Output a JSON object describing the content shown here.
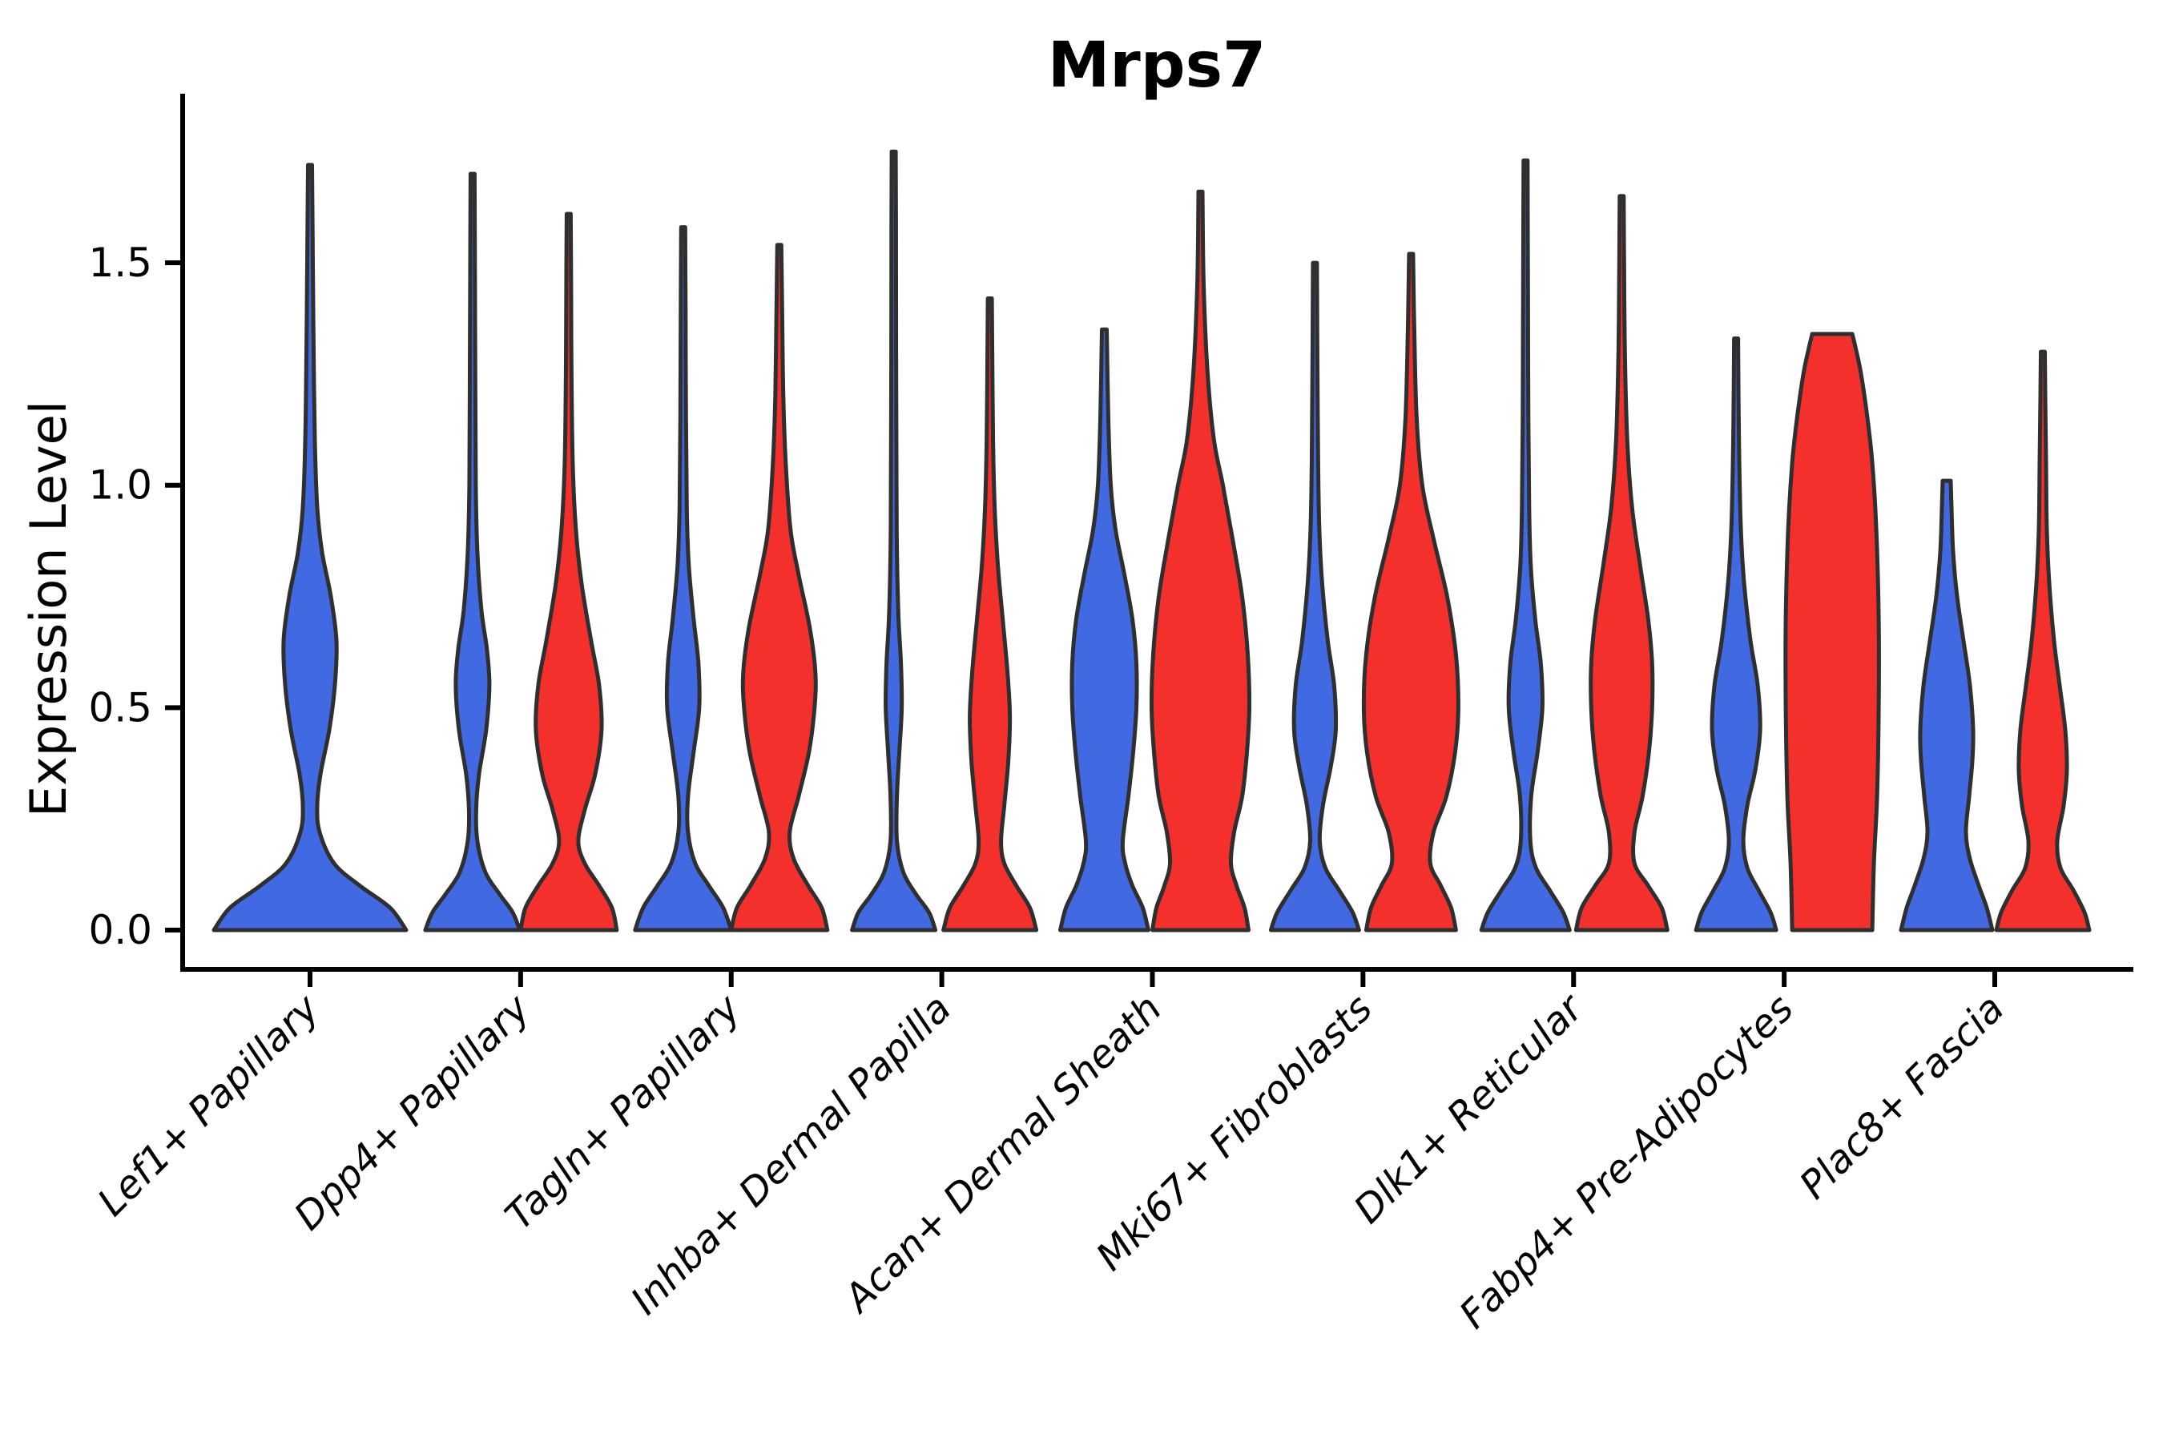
{
  "figure": {
    "title": "Mrps7",
    "ylabel": "Expression Level"
  },
  "chart_data": {
    "type": "violin",
    "subtype": "split-violin-pairs",
    "title": "Mrps7",
    "xlabel": "",
    "ylabel": "Expression Level",
    "ylim": [
      -0.09,
      1.88
    ],
    "yticks": [
      0.0,
      0.5,
      1.0,
      1.5
    ],
    "ytick_labels": [
      "0.0",
      "0.5",
      "1.0",
      "1.5"
    ],
    "grid": false,
    "legend": "none",
    "categories": [
      "Lef1+ Papillary",
      "Dpp4+ Papillary",
      "Tagln+ Papillary",
      "Inhba+ Dermal Papilla",
      "Acan+ Dermal Sheath",
      "Mki67+ Fibroblasts",
      "Dlk1+ Reticular",
      "Fabp4+ Pre-Adipocytes",
      "Plac8+ Fascia"
    ],
    "groups": [
      {
        "name": "blue",
        "color": "#4169E1",
        "side": -1
      },
      {
        "name": "red",
        "color": "#F4302C",
        "side": 1
      }
    ],
    "violins": [
      {
        "category": 0,
        "group": "blue",
        "side": 0,
        "max_expression": 1.72,
        "profile": [
          [
            0,
            120
          ],
          [
            0.05,
            100
          ],
          [
            0.1,
            62
          ],
          [
            0.15,
            30
          ],
          [
            0.22,
            12
          ],
          [
            0.28,
            9
          ],
          [
            0.35,
            13
          ],
          [
            0.45,
            24
          ],
          [
            0.55,
            31
          ],
          [
            0.65,
            33
          ],
          [
            0.75,
            26
          ],
          [
            0.85,
            15
          ],
          [
            0.95,
            9
          ],
          [
            1.1,
            6
          ],
          [
            1.3,
            4.5
          ],
          [
            1.5,
            3.5
          ],
          [
            1.72,
            2.5
          ]
        ]
      },
      {
        "category": 1,
        "group": "blue",
        "side": -1,
        "max_expression": 1.7,
        "profile": [
          [
            0,
            59
          ],
          [
            0.04,
            50
          ],
          [
            0.08,
            34
          ],
          [
            0.13,
            16
          ],
          [
            0.2,
            6
          ],
          [
            0.27,
            4.5
          ],
          [
            0.35,
            8
          ],
          [
            0.45,
            17
          ],
          [
            0.55,
            21
          ],
          [
            0.63,
            18
          ],
          [
            0.72,
            11
          ],
          [
            0.85,
            6
          ],
          [
            1.0,
            4
          ],
          [
            1.2,
            3.5
          ],
          [
            1.45,
            3
          ],
          [
            1.7,
            2.5
          ]
        ]
      },
      {
        "category": 1,
        "group": "red",
        "side": 1,
        "max_expression": 1.61,
        "profile": [
          [
            0,
            60
          ],
          [
            0.05,
            54
          ],
          [
            0.1,
            38
          ],
          [
            0.15,
            20
          ],
          [
            0.2,
            12
          ],
          [
            0.27,
            20
          ],
          [
            0.35,
            33
          ],
          [
            0.45,
            41
          ],
          [
            0.55,
            38
          ],
          [
            0.65,
            28
          ],
          [
            0.78,
            16
          ],
          [
            0.9,
            9
          ],
          [
            1.05,
            5
          ],
          [
            1.25,
            3.5
          ],
          [
            1.45,
            3
          ],
          [
            1.61,
            2.5
          ]
        ]
      },
      {
        "category": 2,
        "group": "blue",
        "side": -1,
        "max_expression": 1.58,
        "profile": [
          [
            0,
            60
          ],
          [
            0.05,
            50
          ],
          [
            0.1,
            32
          ],
          [
            0.15,
            15
          ],
          [
            0.22,
            6
          ],
          [
            0.3,
            6
          ],
          [
            0.4,
            13
          ],
          [
            0.5,
            20
          ],
          [
            0.6,
            19
          ],
          [
            0.7,
            13
          ],
          [
            0.82,
            7
          ],
          [
            0.95,
            4.5
          ],
          [
            1.15,
            3.5
          ],
          [
            1.4,
            3
          ],
          [
            1.58,
            2.5
          ]
        ]
      },
      {
        "category": 2,
        "group": "red",
        "side": 1,
        "max_expression": 1.54,
        "profile": [
          [
            0,
            60
          ],
          [
            0.05,
            53
          ],
          [
            0.1,
            36
          ],
          [
            0.16,
            18
          ],
          [
            0.22,
            13
          ],
          [
            0.3,
            24
          ],
          [
            0.4,
            37
          ],
          [
            0.5,
            44
          ],
          [
            0.58,
            45
          ],
          [
            0.68,
            38
          ],
          [
            0.8,
            24
          ],
          [
            0.9,
            14
          ],
          [
            1.05,
            8
          ],
          [
            1.2,
            5
          ],
          [
            1.4,
            3.5
          ],
          [
            1.54,
            2.5
          ]
        ]
      },
      {
        "category": 3,
        "group": "blue",
        "side": -1,
        "max_expression": 1.75,
        "profile": [
          [
            0,
            52
          ],
          [
            0.04,
            44
          ],
          [
            0.08,
            28
          ],
          [
            0.13,
            12
          ],
          [
            0.2,
            4
          ],
          [
            0.3,
            4
          ],
          [
            0.4,
            7
          ],
          [
            0.5,
            10
          ],
          [
            0.6,
            9
          ],
          [
            0.7,
            6
          ],
          [
            0.85,
            4
          ],
          [
            1.0,
            3.5
          ],
          [
            1.3,
            3
          ],
          [
            1.6,
            2.8
          ],
          [
            1.75,
            2.5
          ]
        ]
      },
      {
        "category": 3,
        "group": "red",
        "side": 1,
        "max_expression": 1.42,
        "profile": [
          [
            0,
            58
          ],
          [
            0.05,
            50
          ],
          [
            0.1,
            33
          ],
          [
            0.15,
            18
          ],
          [
            0.2,
            14
          ],
          [
            0.28,
            18
          ],
          [
            0.38,
            23
          ],
          [
            0.48,
            25
          ],
          [
            0.58,
            22
          ],
          [
            0.7,
            16
          ],
          [
            0.82,
            10
          ],
          [
            0.95,
            6
          ],
          [
            1.1,
            4
          ],
          [
            1.3,
            3
          ],
          [
            1.42,
            2.5
          ]
        ]
      },
      {
        "category": 4,
        "group": "blue",
        "side": -1,
        "max_expression": 1.35,
        "profile": [
          [
            0,
            55
          ],
          [
            0.05,
            48
          ],
          [
            0.1,
            35
          ],
          [
            0.15,
            26
          ],
          [
            0.2,
            23
          ],
          [
            0.3,
            30
          ],
          [
            0.4,
            36
          ],
          [
            0.5,
            40
          ],
          [
            0.6,
            40
          ],
          [
            0.7,
            35
          ],
          [
            0.8,
            25
          ],
          [
            0.9,
            14
          ],
          [
            1.0,
            8
          ],
          [
            1.15,
            5
          ],
          [
            1.35,
            3
          ]
        ]
      },
      {
        "category": 4,
        "group": "red",
        "side": 1,
        "max_expression": 1.66,
        "profile": [
          [
            0,
            60
          ],
          [
            0.05,
            55
          ],
          [
            0.1,
            45
          ],
          [
            0.15,
            38
          ],
          [
            0.22,
            42
          ],
          [
            0.3,
            52
          ],
          [
            0.4,
            58
          ],
          [
            0.5,
            61
          ],
          [
            0.62,
            59
          ],
          [
            0.75,
            52
          ],
          [
            0.88,
            40
          ],
          [
            1.0,
            28
          ],
          [
            1.1,
            17
          ],
          [
            1.25,
            9
          ],
          [
            1.45,
            4
          ],
          [
            1.66,
            2.5
          ]
        ]
      },
      {
        "category": 5,
        "group": "blue",
        "side": -1,
        "max_expression": 1.5,
        "profile": [
          [
            0,
            55
          ],
          [
            0.04,
            47
          ],
          [
            0.09,
            30
          ],
          [
            0.14,
            13
          ],
          [
            0.2,
            6
          ],
          [
            0.28,
            10
          ],
          [
            0.37,
            20
          ],
          [
            0.45,
            26
          ],
          [
            0.55,
            24
          ],
          [
            0.65,
            16
          ],
          [
            0.78,
            9
          ],
          [
            0.9,
            5.5
          ],
          [
            1.05,
            4
          ],
          [
            1.3,
            3
          ],
          [
            1.5,
            2.5
          ]
        ]
      },
      {
        "category": 5,
        "group": "red",
        "side": 1,
        "max_expression": 1.52,
        "profile": [
          [
            0,
            56
          ],
          [
            0.05,
            50
          ],
          [
            0.1,
            37
          ],
          [
            0.15,
            24
          ],
          [
            0.22,
            28
          ],
          [
            0.3,
            44
          ],
          [
            0.4,
            55
          ],
          [
            0.5,
            59
          ],
          [
            0.62,
            56
          ],
          [
            0.75,
            45
          ],
          [
            0.88,
            28
          ],
          [
            1.0,
            14
          ],
          [
            1.15,
            7
          ],
          [
            1.35,
            4
          ],
          [
            1.52,
            2.5
          ]
        ]
      },
      {
        "category": 6,
        "group": "blue",
        "side": -1,
        "max_expression": 1.73,
        "profile": [
          [
            0,
            55
          ],
          [
            0.04,
            47
          ],
          [
            0.09,
            30
          ],
          [
            0.14,
            13
          ],
          [
            0.2,
            6
          ],
          [
            0.3,
            7
          ],
          [
            0.4,
            15
          ],
          [
            0.5,
            21
          ],
          [
            0.6,
            19
          ],
          [
            0.7,
            12
          ],
          [
            0.82,
            6.5
          ],
          [
            0.95,
            4.5
          ],
          [
            1.15,
            3.5
          ],
          [
            1.45,
            3
          ],
          [
            1.73,
            2.5
          ]
        ]
      },
      {
        "category": 6,
        "group": "red",
        "side": 1,
        "max_expression": 1.65,
        "profile": [
          [
            0,
            57
          ],
          [
            0.05,
            50
          ],
          [
            0.1,
            33
          ],
          [
            0.15,
            16
          ],
          [
            0.22,
            16
          ],
          [
            0.3,
            26
          ],
          [
            0.4,
            34
          ],
          [
            0.5,
            38
          ],
          [
            0.6,
            38
          ],
          [
            0.7,
            33
          ],
          [
            0.82,
            23
          ],
          [
            0.95,
            13
          ],
          [
            1.1,
            7
          ],
          [
            1.3,
            4
          ],
          [
            1.5,
            3
          ],
          [
            1.65,
            2.5
          ]
        ]
      },
      {
        "category": 7,
        "group": "blue",
        "side": -1,
        "max_expression": 1.33,
        "profile": [
          [
            0,
            50
          ],
          [
            0.04,
            43
          ],
          [
            0.09,
            28
          ],
          [
            0.14,
            14
          ],
          [
            0.2,
            9
          ],
          [
            0.28,
            14
          ],
          [
            0.36,
            24
          ],
          [
            0.45,
            30
          ],
          [
            0.55,
            27
          ],
          [
            0.65,
            18
          ],
          [
            0.78,
            10
          ],
          [
            0.9,
            6
          ],
          [
            1.05,
            4
          ],
          [
            1.2,
            3
          ],
          [
            1.33,
            2.5
          ]
        ]
      },
      {
        "category": 7,
        "group": "red",
        "side": 1,
        "max_expression": 1.34,
        "flat_top": true,
        "profile": [
          [
            0,
            50
          ],
          [
            0.15,
            52
          ],
          [
            0.3,
            56
          ],
          [
            0.5,
            58
          ],
          [
            0.7,
            58
          ],
          [
            0.9,
            55
          ],
          [
            1.05,
            50
          ],
          [
            1.15,
            44
          ],
          [
            1.25,
            36
          ],
          [
            1.31,
            29
          ],
          [
            1.34,
            25
          ]
        ]
      },
      {
        "category": 8,
        "group": "blue",
        "side": -1,
        "max_expression": 1.01,
        "flat_top": true,
        "profile": [
          [
            0,
            57
          ],
          [
            0.05,
            50
          ],
          [
            0.1,
            40
          ],
          [
            0.16,
            29
          ],
          [
            0.22,
            24
          ],
          [
            0.3,
            28
          ],
          [
            0.38,
            32
          ],
          [
            0.45,
            33
          ],
          [
            0.55,
            29
          ],
          [
            0.65,
            21
          ],
          [
            0.75,
            13
          ],
          [
            0.85,
            8
          ],
          [
            0.95,
            6
          ],
          [
            1.01,
            5
          ]
        ]
      },
      {
        "category": 8,
        "group": "red",
        "side": 1,
        "max_expression": 1.3,
        "profile": [
          [
            0,
            58
          ],
          [
            0.04,
            52
          ],
          [
            0.09,
            38
          ],
          [
            0.14,
            22
          ],
          [
            0.2,
            18
          ],
          [
            0.28,
            26
          ],
          [
            0.36,
            30
          ],
          [
            0.45,
            28
          ],
          [
            0.55,
            21
          ],
          [
            0.65,
            14
          ],
          [
            0.78,
            8
          ],
          [
            0.9,
            5
          ],
          [
            1.05,
            4
          ],
          [
            1.2,
            3
          ],
          [
            1.3,
            2.5
          ]
        ]
      }
    ],
    "colors": {
      "blue_fill": "#4169E1",
      "red_fill": "#F4302C",
      "outline": "#2F2F2F",
      "axis": "#000000",
      "background": "#FFFFFF"
    }
  }
}
